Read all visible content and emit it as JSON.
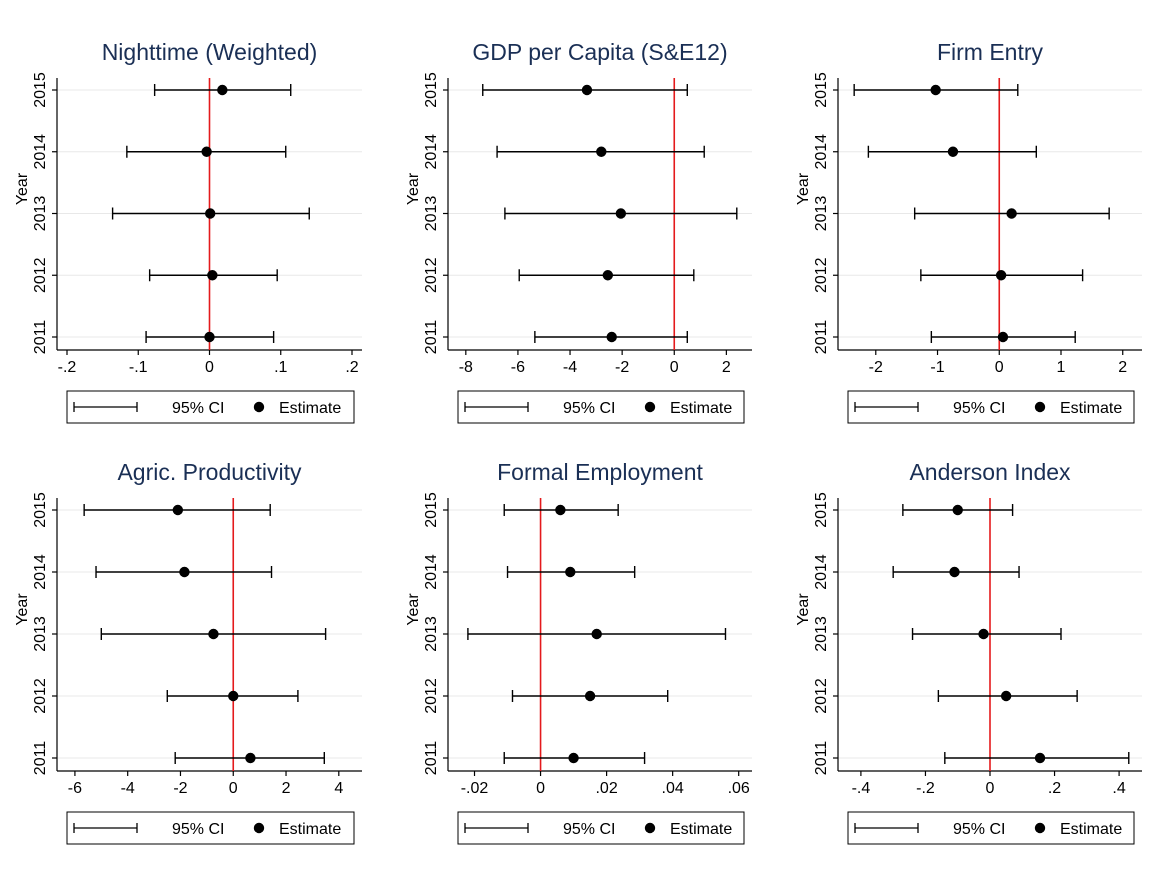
{
  "colors": {
    "zero_line": "#e41a1c",
    "title": "#1a2f55",
    "grid": "#e8e8e8",
    "marks": "#000000"
  },
  "legend": {
    "ci_label": "95% CI",
    "estimate_label": "Estimate"
  },
  "chart_data": [
    {
      "type": "scatter",
      "title": "Nighttime (Weighted)",
      "xlabel": "",
      "ylabel": "Year",
      "categories": [
        "2015",
        "2014",
        "2013",
        "2012",
        "2011"
      ],
      "x_ticks": [
        -0.2,
        -0.1,
        0,
        0.1,
        0.2
      ],
      "x_tick_labels": [
        "-.2",
        "-.1",
        "0",
        ".1",
        ".2"
      ],
      "xlim": [
        -0.2,
        0.2
      ],
      "reference_line": 0,
      "grid": true,
      "legend_position": "bottom",
      "series": [
        {
          "name": "Estimate",
          "values": [
            0.018,
            -0.004,
            0.001,
            0.004,
            0.0
          ]
        },
        {
          "name": "95% CI",
          "lower": [
            -0.077,
            -0.116,
            -0.136,
            -0.084,
            -0.089
          ],
          "upper": [
            0.114,
            0.107,
            0.14,
            0.095,
            0.09
          ]
        }
      ]
    },
    {
      "type": "scatter",
      "title": "GDP per Capita (S&E12)",
      "xlabel": "",
      "ylabel": "Year",
      "categories": [
        "2015",
        "2014",
        "2013",
        "2012",
        "2011"
      ],
      "x_ticks": [
        -8,
        -6,
        -4,
        -2,
        0,
        2
      ],
      "x_tick_labels": [
        "-8",
        "-6",
        "-4",
        "-2",
        "0",
        "2"
      ],
      "xlim": [
        -8.3,
        2.6
      ],
      "reference_line": 0,
      "grid": true,
      "legend_position": "bottom",
      "series": [
        {
          "name": "Estimate",
          "values": [
            -3.35,
            -2.8,
            -2.05,
            -2.55,
            -2.4
          ]
        },
        {
          "name": "95% CI",
          "lower": [
            -7.35,
            -6.8,
            -6.5,
            -5.95,
            -5.35
          ],
          "upper": [
            0.5,
            1.15,
            2.4,
            0.75,
            0.5
          ]
        }
      ]
    },
    {
      "type": "scatter",
      "title": "Firm Entry",
      "xlabel": "",
      "ylabel": "Year",
      "categories": [
        "2015",
        "2014",
        "2013",
        "2012",
        "2011"
      ],
      "x_ticks": [
        -2,
        -1,
        0,
        1,
        2
      ],
      "x_tick_labels": [
        "-2",
        "-1",
        "0",
        "1",
        "2"
      ],
      "xlim": [
        -2.45,
        2.15
      ],
      "reference_line": 0,
      "grid": true,
      "legend_position": "bottom",
      "series": [
        {
          "name": "Estimate",
          "values": [
            -1.03,
            -0.75,
            0.2,
            0.03,
            0.06
          ]
        },
        {
          "name": "95% CI",
          "lower": [
            -2.35,
            -2.12,
            -1.37,
            -1.27,
            -1.1
          ],
          "upper": [
            0.3,
            0.6,
            1.78,
            1.35,
            1.23
          ]
        }
      ]
    },
    {
      "type": "scatter",
      "title": "Agric. Productivity",
      "xlabel": "",
      "ylabel": "Year",
      "categories": [
        "2015",
        "2014",
        "2013",
        "2012",
        "2011"
      ],
      "x_ticks": [
        -6,
        -4,
        -2,
        0,
        2,
        4
      ],
      "x_tick_labels": [
        "-6",
        "-4",
        "-2",
        "0",
        "2",
        "4"
      ],
      "xlim": [
        -6.3,
        4.5
      ],
      "reference_line": 0,
      "grid": true,
      "legend_position": "bottom",
      "series": [
        {
          "name": "Estimate",
          "values": [
            -2.1,
            -1.85,
            -0.75,
            0.0,
            0.65
          ]
        },
        {
          "name": "95% CI",
          "lower": [
            -5.65,
            -5.2,
            -5.0,
            -2.5,
            -2.2
          ],
          "upper": [
            1.4,
            1.45,
            3.5,
            2.45,
            3.45
          ]
        }
      ]
    },
    {
      "type": "scatter",
      "title": "Formal Employment",
      "xlabel": "",
      "ylabel": "Year",
      "categories": [
        "2015",
        "2014",
        "2013",
        "2012",
        "2011"
      ],
      "x_ticks": [
        -0.02,
        0,
        0.02,
        0.04,
        0.06
      ],
      "x_tick_labels": [
        "-.02",
        "0",
        ".02",
        ".04",
        ".06"
      ],
      "xlim": [
        -0.025,
        0.061
      ],
      "reference_line": 0,
      "grid": true,
      "legend_position": "bottom",
      "series": [
        {
          "name": "Estimate",
          "values": [
            0.006,
            0.009,
            0.017,
            0.015,
            0.01
          ]
        },
        {
          "name": "95% CI",
          "lower": [
            -0.011,
            -0.01,
            -0.022,
            -0.0085,
            -0.011
          ],
          "upper": [
            0.0235,
            0.0285,
            0.056,
            0.0385,
            0.0315
          ]
        }
      ]
    },
    {
      "type": "scatter",
      "title": "Anderson Index",
      "xlabel": "",
      "ylabel": "Year",
      "categories": [
        "2015",
        "2014",
        "2013",
        "2012",
        "2011"
      ],
      "x_ticks": [
        -0.4,
        -0.2,
        0,
        0.2,
        0.4
      ],
      "x_tick_labels": [
        "-.4",
        "-.2",
        "0",
        ".2",
        ".4"
      ],
      "xlim": [
        -0.44,
        0.44
      ],
      "reference_line": 0,
      "grid": true,
      "legend_position": "bottom",
      "series": [
        {
          "name": "Estimate",
          "values": [
            -0.1,
            -0.11,
            -0.02,
            0.05,
            0.155
          ]
        },
        {
          "name": "95% CI",
          "lower": [
            -0.27,
            -0.3,
            -0.24,
            -0.16,
            -0.14
          ],
          "upper": [
            0.07,
            0.09,
            0.22,
            0.27,
            0.43
          ]
        }
      ]
    }
  ]
}
